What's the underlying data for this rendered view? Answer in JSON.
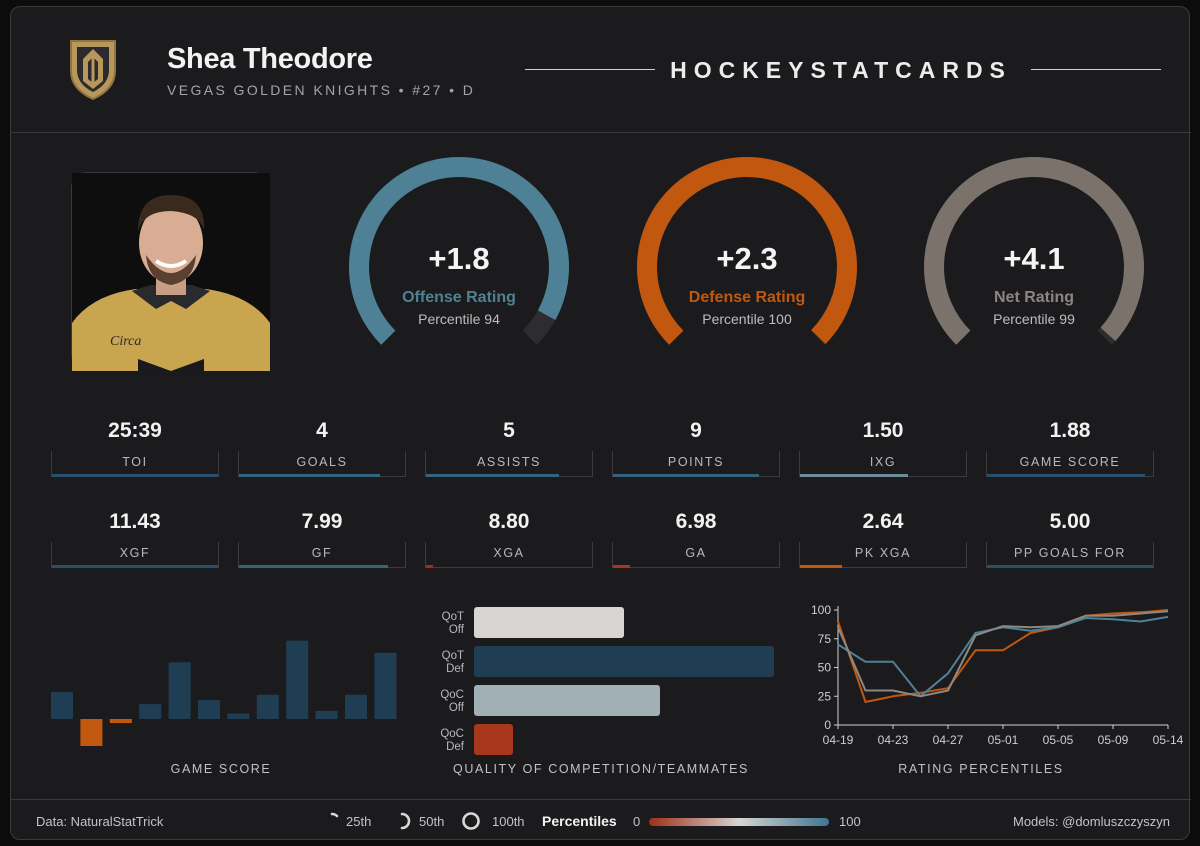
{
  "header": {
    "player_name": "Shea Theodore",
    "player_sub": "VEGAS GOLDEN KNIGHTS • #27 • D",
    "brand": "HOCKEYSTATCARDS",
    "logo_icon": "golden-knights-helmet-icon"
  },
  "gauges": [
    {
      "value": "+1.8",
      "label": "Offense Rating",
      "percentile_text": "Percentile 94",
      "percentile": 94,
      "color": "#4f8196"
    },
    {
      "value": "+2.3",
      "label": "Defense Rating",
      "percentile_text": "Percentile 100",
      "percentile": 100,
      "color": "#c2580f"
    },
    {
      "value": "+4.1",
      "label": "Net Rating",
      "percentile_text": "Percentile 99",
      "percentile": 99,
      "color": "#7c726c"
    }
  ],
  "stats": [
    {
      "value": "25:39",
      "label": "TOI",
      "percentile": 100,
      "color": "#29506a"
    },
    {
      "value": "4",
      "label": "GOALS",
      "percentile": 85,
      "color": "#35627c"
    },
    {
      "value": "5",
      "label": "ASSISTS",
      "percentile": 80,
      "color": "#35627c"
    },
    {
      "value": "9",
      "label": "POINTS",
      "percentile": 88,
      "color": "#35627c"
    },
    {
      "value": "1.50",
      "label": "IXG",
      "percentile": 65,
      "color": "#6d8b99"
    },
    {
      "value": "1.88",
      "label": "GAME SCORE",
      "percentile": 95,
      "color": "#29506a"
    },
    {
      "value": "11.43",
      "label": "XGF",
      "percentile": 100,
      "color": "#29506a"
    },
    {
      "value": "7.99",
      "label": "GF",
      "percentile": 90,
      "color": "#35627c"
    },
    {
      "value": "8.80",
      "label": "XGA",
      "percentile": 4,
      "color": "#9e2f18"
    },
    {
      "value": "6.98",
      "label": "GA",
      "percentile": 10,
      "color": "#a8381b"
    },
    {
      "value": "2.64",
      "label": "PK XGA",
      "percentile": 25,
      "color": "#c2580f"
    },
    {
      "value": "5.00",
      "label": "PP GOALS FOR",
      "percentile": 100,
      "color": "#29506a"
    }
  ],
  "charts": {
    "game_score_title": "GAME SCORE",
    "qoc_title": "QUALITY OF COMPETITION/TEAMMATES",
    "rating_title": "RATING PERCENTILES"
  },
  "chart_data": [
    {
      "type": "bar",
      "title": "GAME SCORE",
      "values": [
        1.0,
        -1.0,
        -0.15,
        0.55,
        2.1,
        0.7,
        0.2,
        0.9,
        2.9,
        0.3,
        0.9,
        2.45
      ],
      "colors": {
        "positive": "#1f3e54",
        "negative": "#c2580f"
      }
    },
    {
      "type": "bar",
      "orientation": "horizontal",
      "title": "QUALITY OF COMPETITION/TEAMMATES",
      "categories": [
        [
          "QoT",
          "Off"
        ],
        [
          "QoT",
          "Def"
        ],
        [
          "QoC",
          "Off"
        ],
        [
          "QoC",
          "Def"
        ]
      ],
      "values": [
        50,
        100,
        62,
        13
      ],
      "colors": [
        "#d7d4d2",
        "#1f3e54",
        "#a0b0b5",
        "#a8381b"
      ]
    },
    {
      "type": "line",
      "title": "RATING PERCENTILES",
      "x": [
        "04-19",
        "04-21",
        "04-23",
        "04-25",
        "04-27",
        "04-29",
        "05-01",
        "05-03",
        "05-05",
        "05-07",
        "05-09",
        "05-11",
        "05-14"
      ],
      "xticks": [
        "04-19",
        "04-23",
        "04-27",
        "05-01",
        "05-05",
        "05-09",
        "05-14"
      ],
      "yticks": [
        0,
        25,
        50,
        75,
        100
      ],
      "ylim": [
        0,
        100
      ],
      "series": [
        {
          "color": "#c2580f",
          "values": [
            90,
            20,
            25,
            28,
            32,
            65,
            65,
            80,
            85,
            95,
            97,
            98,
            100
          ]
        },
        {
          "color": "#4f8196",
          "values": [
            70,
            55,
            55,
            25,
            45,
            80,
            85,
            82,
            85,
            93,
            92,
            90,
            94
          ]
        },
        {
          "color": "#8c8884",
          "values": [
            85,
            30,
            30,
            25,
            30,
            78,
            86,
            85,
            86,
            95,
            95,
            97,
            99
          ]
        }
      ]
    }
  ],
  "footer": {
    "data_source": "Data: NaturalStatTrick",
    "legend_25": "25th",
    "legend_50": "50th",
    "legend_100": "100th",
    "legend_title": "Percentiles",
    "scale_min": "0",
    "scale_max": "100",
    "models_credit": "Models: @domluszczyszyn",
    "scale_colors": [
      "#9e2f18",
      "#d7d4d2",
      "#3f7592"
    ]
  }
}
